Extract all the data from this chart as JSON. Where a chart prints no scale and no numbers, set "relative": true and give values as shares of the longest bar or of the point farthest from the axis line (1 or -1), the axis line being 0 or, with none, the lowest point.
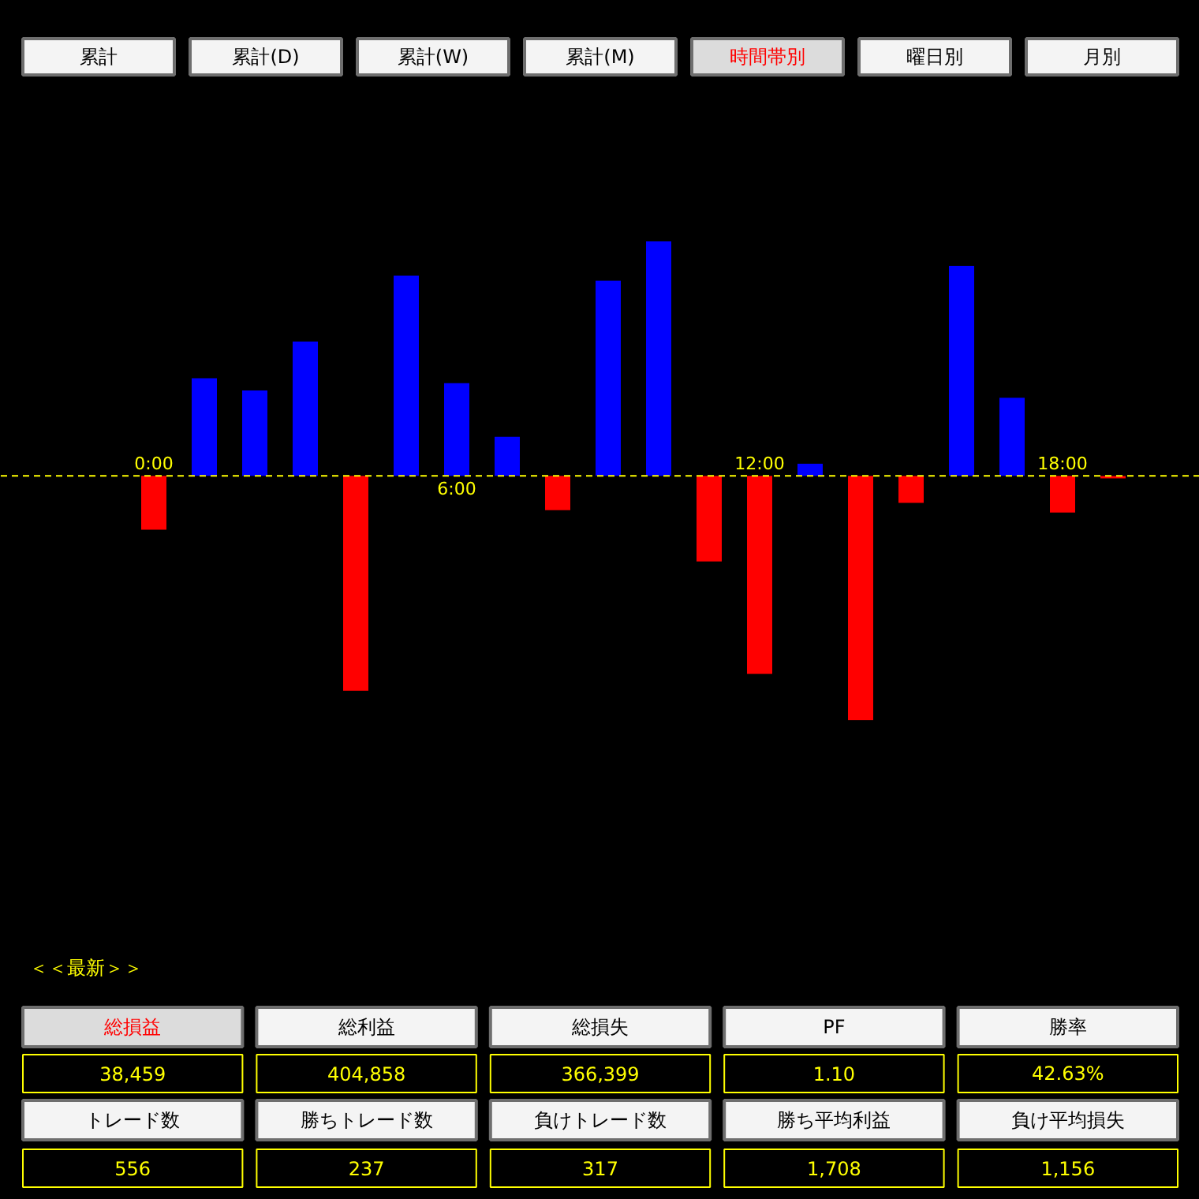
{
  "chart_data": [
    {
      "type": "other",
      "annotations": [
        "累計",
        "累計(D)",
        "累計(W)",
        "累計(M)",
        "時間帯別",
        "曜日別",
        "月別"
      ],
      "colors": [
        "#000000",
        "#000000",
        "#000000",
        "#000000",
        "#ff0000",
        "#000000",
        "#000000"
      ]
    },
    {
      "type": "bar",
      "relative": true,
      "categories": [
        "0:00",
        null,
        null,
        null,
        null,
        null,
        "6:00",
        null,
        null,
        null,
        null,
        null,
        "12:00",
        null,
        null,
        null,
        null,
        null,
        "18:00",
        null
      ],
      "values": [
        -0.22,
        0.4,
        0.35,
        0.55,
        -0.88,
        0.82,
        0.38,
        0.16,
        -0.14,
        0.8,
        0.96,
        -0.35,
        -0.81,
        0.05,
        -1,
        -0.11,
        0.86,
        0.32,
        -0.15,
        -0.01
      ],
      "colors": [
        "#ff0000",
        "#0000ff",
        "#0000ff",
        "#0000ff",
        "#ff0000",
        "#0000ff",
        "#0000ff",
        "#0000ff",
        "#ff0000",
        "#0000ff",
        "#0000ff",
        "#ff0000",
        "#ff0000",
        "#0000ff",
        "#ff0000",
        "#ff0000",
        "#0000ff",
        "#0000ff",
        "#ff0000",
        "#ff0000"
      ],
      "ref_lines": [
        {
          "axis": "y",
          "value": 0,
          "color": "#ffff00",
          "line_style": "dashed"
        }
      ]
    },
    {
      "type": "other",
      "title": "＜＜最新＞＞",
      "annotations": [
        "総損益",
        "総利益",
        "総損失",
        "PF",
        "勝率",
        "38,459",
        "404,858",
        "366,399",
        "1.10",
        "42.63%",
        "トレード数",
        "勝ちトレード数",
        "負けトレード数",
        "勝ち平均利益",
        "負け平均損失",
        "556",
        "237",
        "317",
        "1,708",
        "1,156"
      ],
      "colors": [
        "#ff0000",
        "#000000",
        "#000000",
        "#000000",
        "#000000",
        "#ffff00",
        "#ffff00",
        "#ffff00",
        "#ffff00",
        "#ffff00",
        "#000000",
        "#000000",
        "#000000",
        "#000000",
        "#000000",
        "#ffff00",
        "#ffff00",
        "#ffff00",
        "#ffff00",
        "#ffff00"
      ]
    }
  ]
}
